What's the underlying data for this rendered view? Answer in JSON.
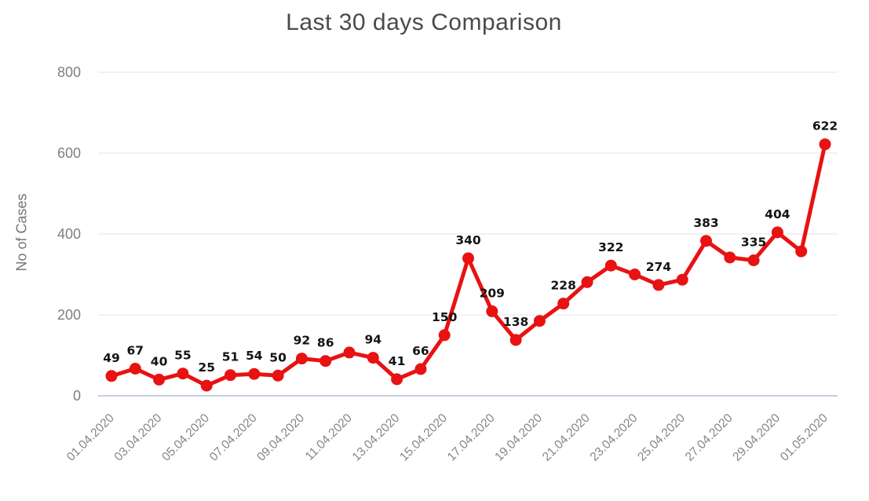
{
  "chart_data": {
    "type": "line",
    "title": "Last 30 days Comparison",
    "xlabel": "",
    "ylabel": "No of Cases",
    "ylim": [
      0,
      800
    ],
    "yticks": [
      0,
      200,
      400,
      600,
      800
    ],
    "grid": true,
    "legend": "none",
    "line_color": "#e81212",
    "marker_color": "#e81212",
    "grid_color": "#e4e4e4",
    "axis_line_color": "#c4cfe0",
    "label_color": "#141414",
    "tick_color": "#858585",
    "points": [
      {
        "date": "01.04.2020",
        "value": 49,
        "label": "49"
      },
      {
        "date": "02.04.2020",
        "value": 67,
        "label": "67"
      },
      {
        "date": "03.04.2020",
        "value": 40,
        "label": "40"
      },
      {
        "date": "04.04.2020",
        "value": 55,
        "label": "55"
      },
      {
        "date": "05.04.2020",
        "value": 25,
        "label": "25"
      },
      {
        "date": "06.04.2020",
        "value": 51,
        "label": "51"
      },
      {
        "date": "07.04.2020",
        "value": 54,
        "label": "54"
      },
      {
        "date": "08.04.2020",
        "value": 50,
        "label": "50"
      },
      {
        "date": "09.04.2020",
        "value": 92,
        "label": "92"
      },
      {
        "date": "10.04.2020",
        "value": 86,
        "label": "86"
      },
      {
        "date": "11.04.2020",
        "value": 107,
        "label": ""
      },
      {
        "date": "12.04.2020",
        "value": 94,
        "label": "94"
      },
      {
        "date": "13.04.2020",
        "value": 41,
        "label": "41"
      },
      {
        "date": "14.04.2020",
        "value": 66,
        "label": "66"
      },
      {
        "date": "15.04.2020",
        "value": 150,
        "label": "150"
      },
      {
        "date": "16.04.2020",
        "value": 340,
        "label": "340"
      },
      {
        "date": "17.04.2020",
        "value": 209,
        "label": "209"
      },
      {
        "date": "18.04.2020",
        "value": 138,
        "label": "138"
      },
      {
        "date": "19.04.2020",
        "value": 185,
        "label": ""
      },
      {
        "date": "20.04.2020",
        "value": 228,
        "label": "228"
      },
      {
        "date": "21.04.2020",
        "value": 281,
        "label": ""
      },
      {
        "date": "22.04.2020",
        "value": 322,
        "label": "322"
      },
      {
        "date": "23.04.2020",
        "value": 300,
        "label": ""
      },
      {
        "date": "24.04.2020",
        "value": 274,
        "label": "274"
      },
      {
        "date": "25.04.2020",
        "value": 287,
        "label": ""
      },
      {
        "date": "26.04.2020",
        "value": 383,
        "label": "383"
      },
      {
        "date": "27.04.2020",
        "value": 342,
        "label": ""
      },
      {
        "date": "28.04.2020",
        "value": 335,
        "label": "335"
      },
      {
        "date": "29.04.2020",
        "value": 404,
        "label": "404"
      },
      {
        "date": "30.04.2020",
        "value": 357,
        "label": ""
      },
      {
        "date": "01.05.2020",
        "value": 622,
        "label": "622"
      }
    ]
  }
}
